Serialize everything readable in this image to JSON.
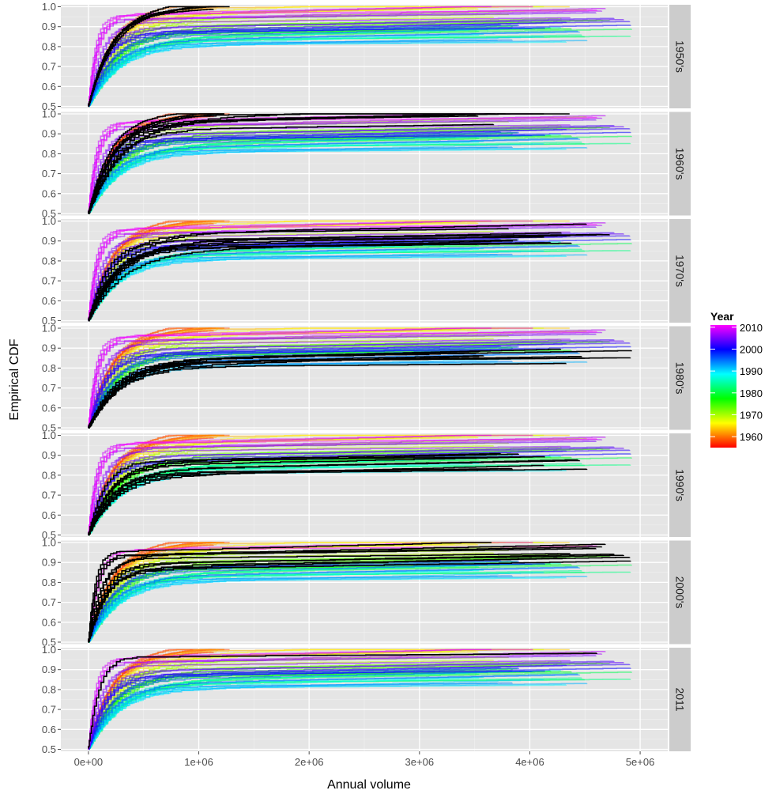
{
  "chart_data": {
    "type": "line",
    "subtype": "faceted empirical CDF (step lines), one line per year",
    "xlabel": "Annual volume",
    "ylabel": "Empirical CDF",
    "xlim": [
      -250000,
      5250000
    ],
    "ylim": [
      0.49,
      1.01
    ],
    "x_ticks": [
      0,
      1000000,
      2000000,
      3000000,
      4000000,
      5000000
    ],
    "x_tick_labels": [
      "0e+00",
      "1e+06",
      "2e+06",
      "3e+06",
      "4e+06",
      "5e+06"
    ],
    "y_ticks": [
      0.5,
      0.6,
      0.7,
      0.8,
      0.9,
      1.0
    ],
    "y_tick_labels": [
      "0.5",
      "0.6",
      "0.7",
      "0.8",
      "0.9",
      "1.0"
    ],
    "grid": true,
    "panel_background": "#e5e5e5",
    "strip_background": "#cccccc",
    "highlight_color": "#000000",
    "year_range": [
      1955,
      2011
    ],
    "facets": [
      {
        "label": "1950's",
        "highlight_years": [
          1955,
          1956,
          1957,
          1958,
          1959
        ]
      },
      {
        "label": "1960's",
        "highlight_years": [
          1960,
          1961,
          1962,
          1963,
          1964,
          1965,
          1966,
          1967,
          1968,
          1969
        ]
      },
      {
        "label": "1970's",
        "highlight_years": [
          1970,
          1971,
          1972,
          1973,
          1974,
          1975,
          1976,
          1977,
          1978,
          1979
        ]
      },
      {
        "label": "1980's",
        "highlight_years": [
          1980,
          1981,
          1982,
          1983,
          1984,
          1985,
          1986,
          1987,
          1988,
          1989
        ]
      },
      {
        "label": "1990's",
        "highlight_years": [
          1990,
          1991,
          1992,
          1993,
          1994,
          1995,
          1996,
          1997,
          1998,
          1999
        ]
      },
      {
        "label": "2000's",
        "highlight_years": [
          2000,
          2001,
          2002,
          2003,
          2004,
          2005,
          2006,
          2007,
          2008,
          2009
        ]
      },
      {
        "label": "2011",
        "highlight_years": [
          2011
        ]
      }
    ],
    "legend": {
      "title": "Year",
      "position": "right",
      "breaks": [
        2010,
        2000,
        1990,
        1980,
        1970,
        1960
      ],
      "labels": [
        "2010",
        "2000",
        "1990",
        "1980",
        "1970",
        "1960"
      ],
      "scale": "rainbow (red 1955 → magenta 2011)"
    }
  }
}
